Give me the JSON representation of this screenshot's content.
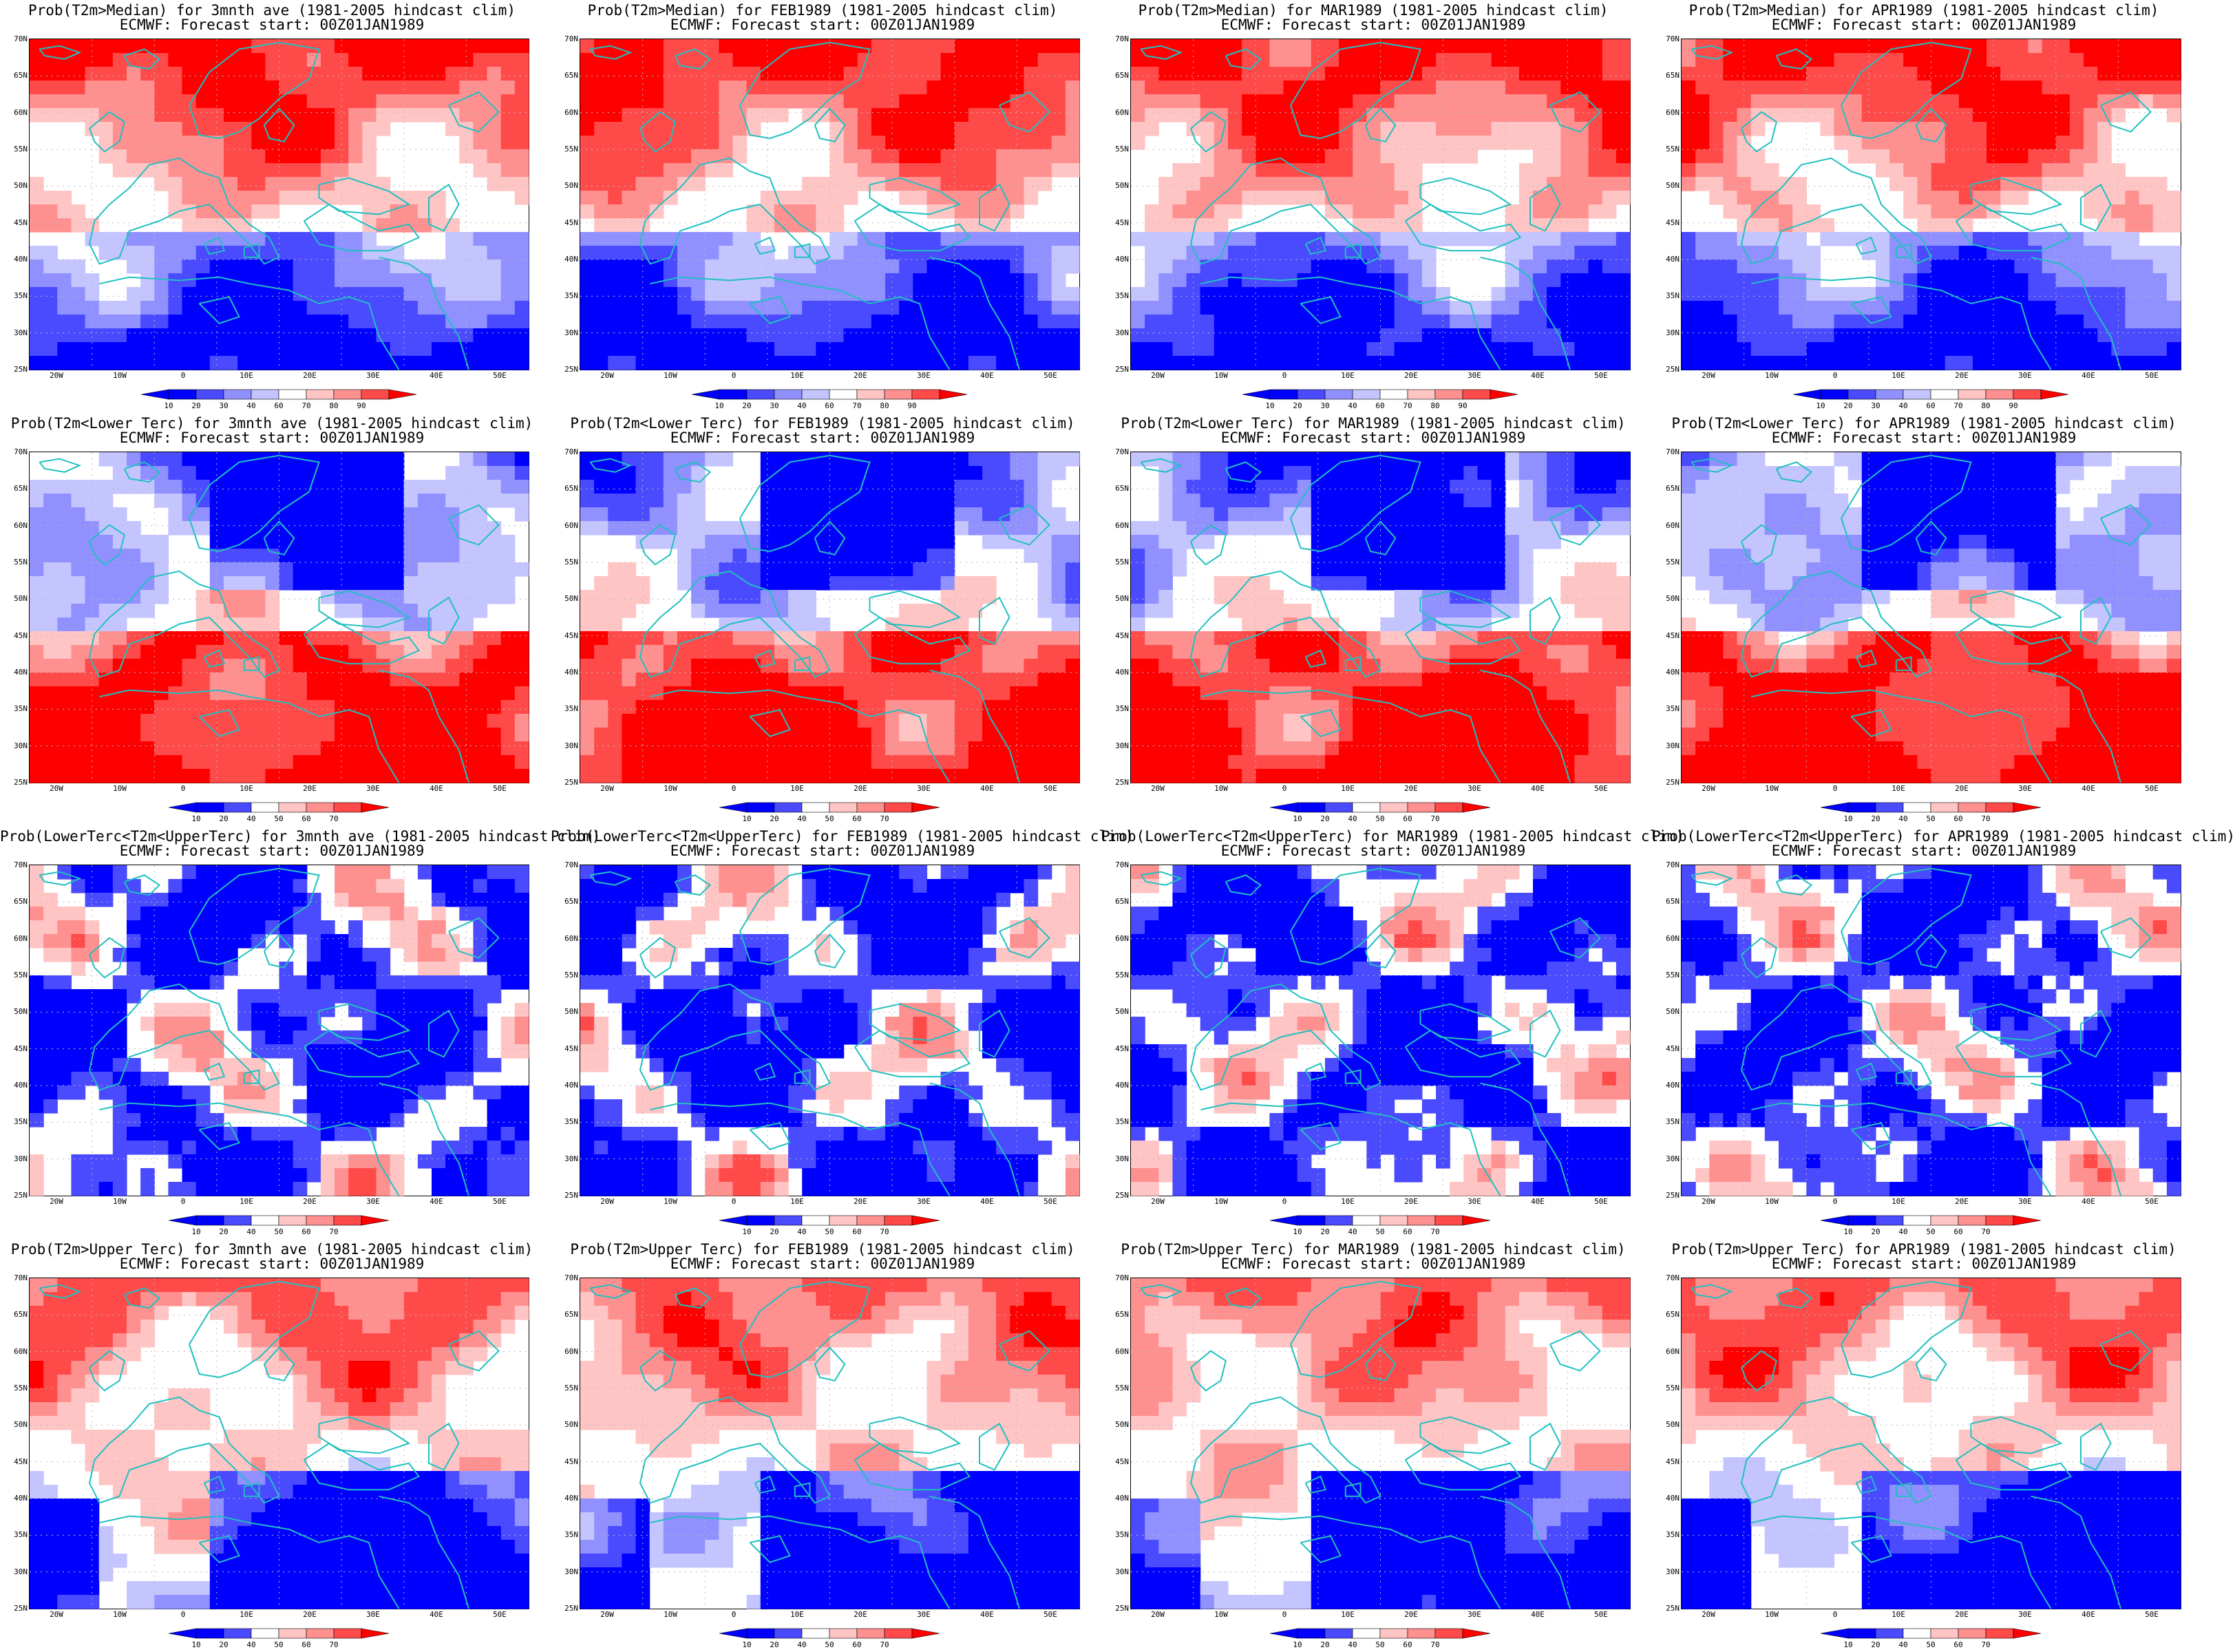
{
  "colors": {
    "blue_scale": [
      "#0000ff",
      "#4a4aff",
      "#9090ff",
      "#c4c4ff"
    ],
    "red_scale": [
      "#ffc4c4",
      "#ff9090",
      "#ff4a4a",
      "#ff0000"
    ],
    "coast": "#20c0c0",
    "grid": "#bbbbbb"
  },
  "subtitle": "ECMWF: Forecast start: 00Z01JAN1989",
  "lat_labels": [
    "70N",
    "65N",
    "60N",
    "55N",
    "50N",
    "45N",
    "40N",
    "35N",
    "30N",
    "25N"
  ],
  "lon_labels": [
    "20W",
    "10W",
    "0",
    "10E",
    "20E",
    "30E",
    "40E",
    "50E"
  ],
  "colorbar_median": [
    "10",
    "20",
    "30",
    "40",
    "60",
    "70",
    "80",
    "90"
  ],
  "colorbar_tercile": [
    "10",
    "20",
    "40",
    "50",
    "60",
    "70"
  ],
  "rows": [
    {
      "label": "Prob(T2m>Median)",
      "panels": [
        {
          "title": "Prob(T2m>Median) for 3mnth ave (1981-2005 hindcast clim)",
          "pattern": "median"
        },
        {
          "title": "Prob(T2m>Median) for FEB1989 (1981-2005 hindcast clim)",
          "pattern": "median"
        },
        {
          "title": "Prob(T2m>Median) for MAR1989 (1981-2005 hindcast clim)",
          "pattern": "median"
        },
        {
          "title": "Prob(T2m>Median) for APR1989 (1981-2005 hindcast clim)",
          "pattern": "median"
        }
      ]
    },
    {
      "label": "Prob(T2m<Lower Terc)",
      "panels": [
        {
          "title": "Prob(T2m<Lower Terc) for 3mnth ave (1981-2005 hindcast clim)",
          "pattern": "lower"
        },
        {
          "title": "Prob(T2m<Lower Terc) for FEB1989 (1981-2005 hindcast clim)",
          "pattern": "lower"
        },
        {
          "title": "Prob(T2m<Lower Terc) for MAR1989 (1981-2005 hindcast clim)",
          "pattern": "lower"
        },
        {
          "title": "Prob(T2m<Lower Terc) for APR1989 (1981-2005 hindcast clim)",
          "pattern": "lower"
        }
      ]
    },
    {
      "label": "Prob(LowerTerc<T2m<UpperTerc)",
      "panels": [
        {
          "title": "Prob(LowerTerc<T2m<UpperTerc) for 3mnth ave (1981-2005 hindcast clim)",
          "pattern": "middle"
        },
        {
          "title": "Prob(LowerTerc<T2m<UpperTerc) for FEB1989 (1981-2005 hindcast clim)",
          "pattern": "middle"
        },
        {
          "title": "Prob(LowerTerc<T2m<UpperTerc) for MAR1989 (1981-2005 hindcast clim)",
          "pattern": "middle"
        },
        {
          "title": "Prob(LowerTerc<T2m<UpperTerc) for APR1989 (1981-2005 hindcast clim)",
          "pattern": "middle"
        }
      ]
    },
    {
      "label": "Prob(T2m>Upper Terc)",
      "panels": [
        {
          "title": "Prob(T2m>Upper Terc) for 3mnth ave (1981-2005 hindcast clim)",
          "pattern": "upper"
        },
        {
          "title": "Prob(T2m>Upper Terc) for FEB1989 (1981-2005 hindcast clim)",
          "pattern": "upper"
        },
        {
          "title": "Prob(T2m>Upper Terc) for MAR1989 (1981-2005 hindcast clim)",
          "pattern": "upper"
        },
        {
          "title": "Prob(T2m>Upper Terc) for APR1989 (1981-2005 hindcast clim)",
          "pattern": "upper"
        }
      ]
    }
  ]
}
